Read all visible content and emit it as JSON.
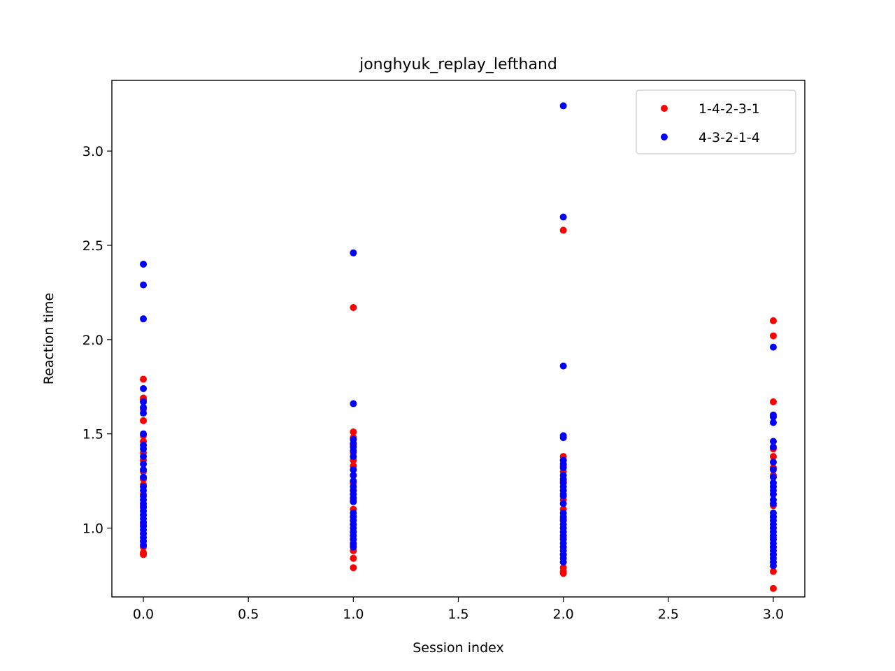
{
  "chart_data": {
    "type": "scatter",
    "title": "jonghyuk_replay_lefthand",
    "xlabel": "Session index",
    "ylabel": "Reaction time",
    "xlim": [
      -0.15,
      3.15
    ],
    "ylim": [
      0.635,
      3.375
    ],
    "xticks": [
      0.0,
      0.5,
      1.0,
      1.5,
      2.0,
      2.5,
      3.0
    ],
    "xtick_labels": [
      "0.0",
      "0.5",
      "1.0",
      "1.5",
      "2.0",
      "2.5",
      "3.0"
    ],
    "yticks": [
      1.0,
      1.5,
      2.0,
      2.5,
      3.0
    ],
    "ytick_labels": [
      "1.0",
      "1.5",
      "2.0",
      "2.5",
      "3.0"
    ],
    "grid": false,
    "legend_position": "top-right",
    "series": [
      {
        "name": "1-4-2-3-1",
        "color": "#ff0000",
        "points": [
          [
            0,
            1.79
          ],
          [
            0,
            1.69
          ],
          [
            0,
            1.68
          ],
          [
            0,
            1.63
          ],
          [
            0,
            1.57
          ],
          [
            0,
            1.49
          ],
          [
            0,
            1.46
          ],
          [
            0,
            1.4
          ],
          [
            0,
            1.36
          ],
          [
            0,
            1.3
          ],
          [
            0,
            1.26
          ],
          [
            0,
            1.23
          ],
          [
            0,
            1.18
          ],
          [
            0,
            1.12
          ],
          [
            0,
            1.07
          ],
          [
            0,
            1.02
          ],
          [
            0,
            0.97
          ],
          [
            0,
            0.93
          ],
          [
            0,
            0.9
          ],
          [
            0,
            0.87
          ],
          [
            0,
            0.86
          ],
          [
            1,
            2.17
          ],
          [
            1,
            1.51
          ],
          [
            1,
            1.48
          ],
          [
            1,
            1.44
          ],
          [
            1,
            1.4
          ],
          [
            1,
            1.36
          ],
          [
            1,
            1.33
          ],
          [
            1,
            1.28
          ],
          [
            1,
            1.24
          ],
          [
            1,
            1.2
          ],
          [
            1,
            1.15
          ],
          [
            1,
            1.1
          ],
          [
            1,
            1.06
          ],
          [
            1,
            1.02
          ],
          [
            1,
            0.98
          ],
          [
            1,
            0.94
          ],
          [
            1,
            0.91
          ],
          [
            1,
            0.88
          ],
          [
            1,
            0.84
          ],
          [
            1,
            0.79
          ],
          [
            2,
            2.58
          ],
          [
            2,
            1.38
          ],
          [
            2,
            1.36
          ],
          [
            2,
            1.33
          ],
          [
            2,
            1.3
          ],
          [
            2,
            1.25
          ],
          [
            2,
            1.2
          ],
          [
            2,
            1.15
          ],
          [
            2,
            1.1
          ],
          [
            2,
            1.05
          ],
          [
            2,
            1.0
          ],
          [
            2,
            0.95
          ],
          [
            2,
            0.9
          ],
          [
            2,
            0.86
          ],
          [
            2,
            0.82
          ],
          [
            2,
            0.79
          ],
          [
            2,
            0.77
          ],
          [
            2,
            0.76
          ],
          [
            3,
            2.1
          ],
          [
            3,
            2.02
          ],
          [
            3,
            1.67
          ],
          [
            3,
            1.42
          ],
          [
            3,
            1.38
          ],
          [
            3,
            1.32
          ],
          [
            3,
            1.28
          ],
          [
            3,
            1.22
          ],
          [
            3,
            1.18
          ],
          [
            3,
            1.12
          ],
          [
            3,
            1.06
          ],
          [
            3,
            1.0
          ],
          [
            3,
            0.95
          ],
          [
            3,
            0.9
          ],
          [
            3,
            0.86
          ],
          [
            3,
            0.82
          ],
          [
            3,
            0.77
          ],
          [
            3,
            0.68
          ]
        ]
      },
      {
        "name": "4-3-2-1-4",
        "color": "#0000ff",
        "points": [
          [
            0,
            2.4
          ],
          [
            0,
            2.29
          ],
          [
            0,
            2.11
          ],
          [
            0,
            1.74
          ],
          [
            0,
            1.67
          ],
          [
            0,
            1.64
          ],
          [
            0,
            1.61
          ],
          [
            0,
            1.5
          ],
          [
            0,
            1.44
          ],
          [
            0,
            1.42
          ],
          [
            0,
            1.38
          ],
          [
            0,
            1.34
          ],
          [
            0,
            1.31
          ],
          [
            0,
            1.27
          ],
          [
            0,
            1.22
          ],
          [
            0,
            1.2
          ],
          [
            0,
            1.17
          ],
          [
            0,
            1.15
          ],
          [
            0,
            1.13
          ],
          [
            0,
            1.11
          ],
          [
            0,
            1.09
          ],
          [
            0,
            1.07
          ],
          [
            0,
            1.05
          ],
          [
            0,
            1.03
          ],
          [
            0,
            1.01
          ],
          [
            0,
            0.99
          ],
          [
            0,
            0.97
          ],
          [
            0,
            0.95
          ],
          [
            0,
            0.93
          ],
          [
            0,
            0.91
          ],
          [
            1,
            2.46
          ],
          [
            1,
            1.66
          ],
          [
            1,
            1.47
          ],
          [
            1,
            1.45
          ],
          [
            1,
            1.43
          ],
          [
            1,
            1.41
          ],
          [
            1,
            1.38
          ],
          [
            1,
            1.31
          ],
          [
            1,
            1.28
          ],
          [
            1,
            1.25
          ],
          [
            1,
            1.22
          ],
          [
            1,
            1.2
          ],
          [
            1,
            1.18
          ],
          [
            1,
            1.16
          ],
          [
            1,
            1.14
          ],
          [
            1,
            1.08
          ],
          [
            1,
            1.06
          ],
          [
            1,
            1.04
          ],
          [
            1,
            1.02
          ],
          [
            1,
            1.0
          ],
          [
            1,
            0.98
          ],
          [
            1,
            0.96
          ],
          [
            1,
            0.94
          ],
          [
            1,
            0.92
          ],
          [
            1,
            0.9
          ],
          [
            2,
            3.24
          ],
          [
            2,
            2.65
          ],
          [
            2,
            1.86
          ],
          [
            2,
            1.49
          ],
          [
            2,
            1.48
          ],
          [
            2,
            1.36
          ],
          [
            2,
            1.34
          ],
          [
            2,
            1.32
          ],
          [
            2,
            1.28
          ],
          [
            2,
            1.26
          ],
          [
            2,
            1.24
          ],
          [
            2,
            1.22
          ],
          [
            2,
            1.2
          ],
          [
            2,
            1.18
          ],
          [
            2,
            1.17
          ],
          [
            2,
            1.13
          ],
          [
            2,
            1.08
          ],
          [
            2,
            1.06
          ],
          [
            2,
            1.04
          ],
          [
            2,
            1.02
          ],
          [
            2,
            1.0
          ],
          [
            2,
            0.98
          ],
          [
            2,
            0.96
          ],
          [
            2,
            0.94
          ],
          [
            2,
            0.92
          ],
          [
            2,
            0.9
          ],
          [
            2,
            0.88
          ],
          [
            2,
            0.86
          ],
          [
            2,
            0.84
          ],
          [
            2,
            0.82
          ],
          [
            3,
            1.96
          ],
          [
            3,
            1.6
          ],
          [
            3,
            1.59
          ],
          [
            3,
            1.56
          ],
          [
            3,
            1.46
          ],
          [
            3,
            1.43
          ],
          [
            3,
            1.35
          ],
          [
            3,
            1.31
          ],
          [
            3,
            1.27
          ],
          [
            3,
            1.24
          ],
          [
            3,
            1.22
          ],
          [
            3,
            1.2
          ],
          [
            3,
            1.18
          ],
          [
            3,
            1.15
          ],
          [
            3,
            1.13
          ],
          [
            3,
            1.08
          ],
          [
            3,
            1.06
          ],
          [
            3,
            1.04
          ],
          [
            3,
            1.02
          ],
          [
            3,
            1.0
          ],
          [
            3,
            0.98
          ],
          [
            3,
            0.96
          ],
          [
            3,
            0.94
          ],
          [
            3,
            0.92
          ],
          [
            3,
            0.9
          ],
          [
            3,
            0.88
          ],
          [
            3,
            0.86
          ],
          [
            3,
            0.84
          ],
          [
            3,
            0.82
          ],
          [
            3,
            0.8
          ]
        ]
      }
    ]
  }
}
